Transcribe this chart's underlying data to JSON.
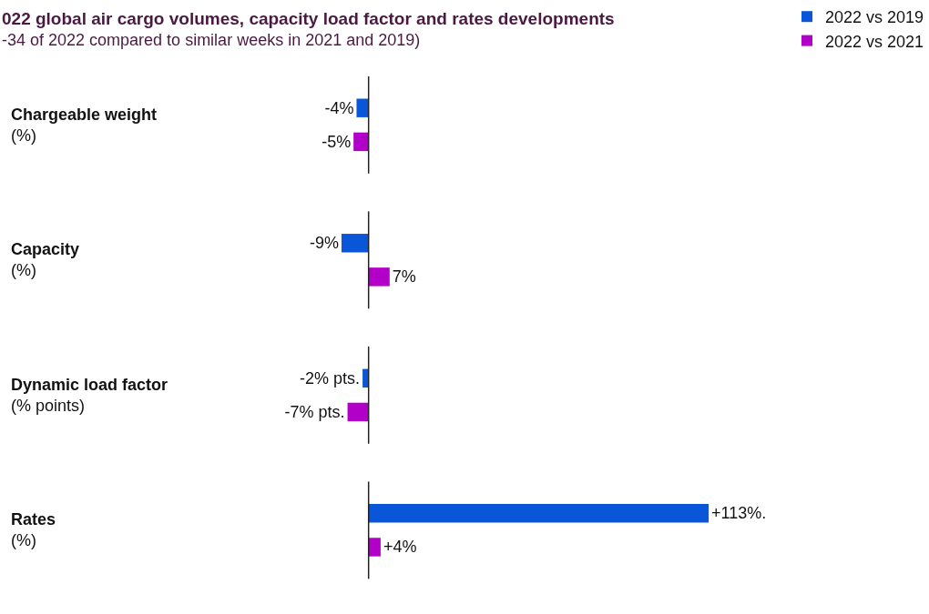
{
  "chart_data": {
    "type": "bar",
    "orientation": "horizontal",
    "title": "022 global air cargo volumes, capacity load factor and rates developments",
    "subtitle": "-34 of 2022 compared to similar weeks in 2021 and 2019)",
    "categories": [
      "Chargeable weight\n(%)",
      "Capacity\n(%)",
      "Dynamic load factor\n(% points)",
      "Rates\n(%)"
    ],
    "series": [
      {
        "name": "2022 vs 2019",
        "color": "#0a56d8",
        "values": [
          -4,
          -9,
          -2,
          113
        ],
        "value_labels": [
          "-4%",
          "-9%",
          "-2% pts.",
          "+113%."
        ]
      },
      {
        "name": "2022 vs 2021",
        "color": "#b300c8",
        "values": [
          -5,
          7,
          -7,
          4
        ],
        "value_labels": [
          "-5%",
          "7%",
          "-7% pts.",
          "+4%"
        ]
      }
    ],
    "legend": "top right",
    "ref_lines": [
      {
        "axis": "x",
        "value": 0,
        "color": "#222222"
      }
    ]
  }
}
